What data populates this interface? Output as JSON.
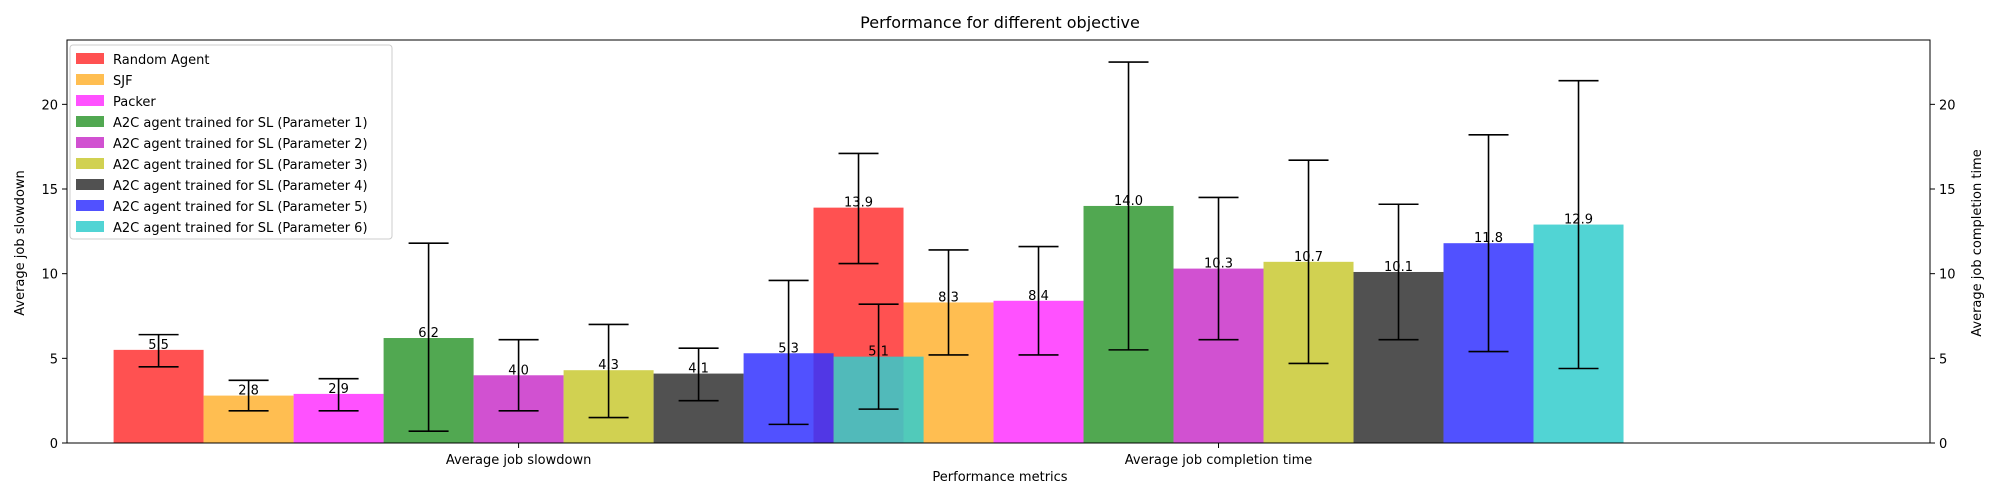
{
  "chart_data": {
    "type": "bar",
    "title": "Performance for different objective",
    "xlabel": "Performance metrics",
    "ylabel": "Average job slowdown",
    "ylabel_right": "Average job completion time",
    "ylim": [
      0,
      23.8
    ],
    "yticks": [
      "0",
      "5",
      "10",
      "15",
      "20"
    ],
    "ytick_values": [
      0,
      5,
      10,
      15,
      20
    ],
    "grid": false,
    "legend_position": "top-left",
    "categories": [
      "Average job slowdown",
      "Average job completion time"
    ],
    "series": [
      {
        "name": "Random Agent",
        "color": "#ff3333",
        "values": [
          5.5,
          13.9
        ],
        "labels": [
          "5.5",
          "13.9"
        ],
        "err_low": [
          4.5,
          10.6
        ],
        "err_high": [
          6.4,
          17.1
        ]
      },
      {
        "name": "SJF",
        "color": "#ffb333",
        "values": [
          2.8,
          8.3
        ],
        "labels": [
          "2.8",
          "8.3"
        ],
        "err_low": [
          1.9,
          5.2
        ],
        "err_high": [
          3.7,
          11.4
        ]
      },
      {
        "name": "Packer",
        "color": "#ff33ff",
        "values": [
          2.9,
          8.4
        ],
        "labels": [
          "2.9",
          "8.4"
        ],
        "err_low": [
          1.9,
          5.2
        ],
        "err_high": [
          3.8,
          11.6
        ]
      },
      {
        "name": "A2C agent trained for SL (Parameter 1)",
        "color": "#339933",
        "values": [
          6.2,
          14.0
        ],
        "labels": [
          "6.2",
          "14.0"
        ],
        "err_low": [
          0.7,
          5.5
        ],
        "err_high": [
          11.8,
          22.5
        ]
      },
      {
        "name": "A2C agent trained for SL (Parameter 2)",
        "color": "#c933c9",
        "values": [
          4.0,
          10.3
        ],
        "labels": [
          "4.0",
          "10.3"
        ],
        "err_low": [
          1.9,
          6.1
        ],
        "err_high": [
          6.1,
          14.5
        ]
      },
      {
        "name": "A2C agent trained for SL (Parameter 3)",
        "color": "#c9c933",
        "values": [
          4.3,
          10.7
        ],
        "labels": [
          "4.3",
          "10.7"
        ],
        "err_low": [
          1.5,
          4.7
        ],
        "err_high": [
          7.0,
          16.7
        ]
      },
      {
        "name": "A2C agent trained for SL (Parameter 4)",
        "color": "#333333",
        "values": [
          4.1,
          10.1
        ],
        "labels": [
          "4.1",
          "10.1"
        ],
        "err_low": [
          2.5,
          6.1
        ],
        "err_high": [
          5.6,
          14.1
        ]
      },
      {
        "name": "A2C agent trained for SL (Parameter 5)",
        "color": "#3333ff",
        "values": [
          5.3,
          11.8
        ],
        "labels": [
          "5.3",
          "11.8"
        ],
        "err_low": [
          1.1,
          5.4
        ],
        "err_high": [
          9.6,
          18.2
        ]
      },
      {
        "name": "A2C agent trained for SL (Parameter 6)",
        "color": "#33cccc",
        "values": [
          5.1,
          12.9
        ],
        "labels": [
          "5.1",
          "12.9"
        ],
        "err_low": [
          2.0,
          4.4
        ],
        "err_high": [
          8.2,
          21.4
        ]
      }
    ]
  }
}
